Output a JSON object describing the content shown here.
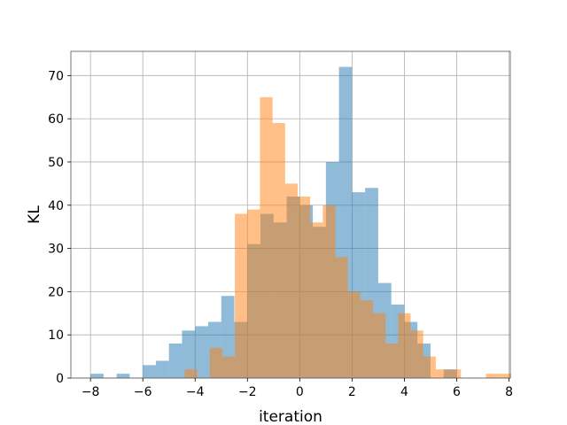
{
  "chart_data": {
    "type": "bar",
    "title": "",
    "xlabel": "iteration",
    "ylabel": "KL",
    "xlim": [
      -8.75,
      8.05
    ],
    "ylim": [
      0,
      75.6
    ],
    "x_ticks": [
      -8,
      -6,
      -4,
      -2,
      0,
      2,
      4,
      6,
      8
    ],
    "x_tick_labels": [
      "−8",
      "−6",
      "−4",
      "−2",
      "0",
      "2",
      "4",
      "6",
      "8"
    ],
    "y_ticks": [
      0,
      10,
      20,
      30,
      40,
      50,
      60,
      70
    ],
    "y_tick_labels": [
      "0",
      "10",
      "20",
      "30",
      "40",
      "50",
      "60",
      "70"
    ],
    "grid": true,
    "legend": "none",
    "series": [
      {
        "color": "#1f77b4",
        "opacity": 0.5,
        "bin_start": -8.0,
        "bin_width": 0.5,
        "values": [
          1,
          0,
          1,
          0,
          3,
          4,
          8,
          11,
          12,
          13,
          19,
          13,
          31,
          38,
          36,
          42,
          40,
          35,
          50,
          72,
          43,
          44,
          22,
          17,
          13,
          8,
          0,
          2
        ]
      },
      {
        "color": "#ff7f0e",
        "opacity": 0.5,
        "bin_start": -4.4,
        "bin_width": 0.48,
        "values": [
          2,
          0,
          7,
          5,
          38,
          39,
          65,
          59,
          45,
          42,
          36,
          40,
          28,
          20,
          18,
          15,
          8,
          15,
          11,
          5,
          2,
          2,
          0,
          0,
          1,
          1
        ]
      }
    ]
  }
}
